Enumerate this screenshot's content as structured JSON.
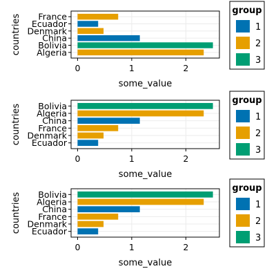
{
  "chart_data": [
    {
      "type": "bar",
      "orientation": "horizontal",
      "categories": [
        "Algeria",
        "Bolivia",
        "China",
        "Denmark",
        "Ecuador",
        "France"
      ],
      "values": [
        2.33,
        2.5,
        1.15,
        0.48,
        0.38,
        0.75
      ],
      "groups": [
        2,
        3,
        1,
        2,
        1,
        2
      ],
      "xlabel": "some_value",
      "ylabel": "countries",
      "xticks": [
        "0",
        "1",
        "2"
      ],
      "xlim": [
        -0.12,
        2.62
      ],
      "grid": true,
      "legend": {
        "title": "group",
        "entries": [
          "1",
          "2",
          "3"
        ],
        "placement": "right"
      }
    },
    {
      "type": "bar",
      "orientation": "horizontal",
      "categories": [
        "Ecuador",
        "Denmark",
        "France",
        "China",
        "Algeria",
        "Bolivia"
      ],
      "values": [
        0.38,
        0.48,
        0.75,
        1.15,
        2.33,
        2.5
      ],
      "groups": [
        1,
        2,
        2,
        1,
        2,
        3
      ],
      "xlabel": "some_value",
      "ylabel": "countries",
      "xticks": [
        "0",
        "1",
        "2"
      ],
      "xlim": [
        -0.12,
        2.62
      ],
      "grid": true,
      "legend": {
        "title": "group",
        "entries": [
          "1",
          "2",
          "3"
        ],
        "placement": "right"
      }
    },
    {
      "type": "bar",
      "orientation": "horizontal",
      "categories": [
        "Ecuador",
        "Denmark",
        "France",
        "China",
        "Algeria",
        "Bolivia"
      ],
      "values": [
        0.38,
        0.48,
        0.75,
        1.15,
        2.33,
        2.5
      ],
      "groups": [
        1,
        2,
        2,
        1,
        2,
        3
      ],
      "xlabel": "some_value",
      "ylabel": "countries",
      "xticks": [
        "0",
        "1",
        "2"
      ],
      "xlim": [
        -0.12,
        2.62
      ],
      "grid": true,
      "legend": {
        "title": "group",
        "entries": [
          "1",
          "2",
          "3"
        ],
        "placement": "right"
      }
    }
  ],
  "colors": {
    "group_1": "#0072b2",
    "group_2": "#e69f00",
    "group_3": "#009e73",
    "grid": "#ebebeb",
    "frame": "#000000"
  }
}
